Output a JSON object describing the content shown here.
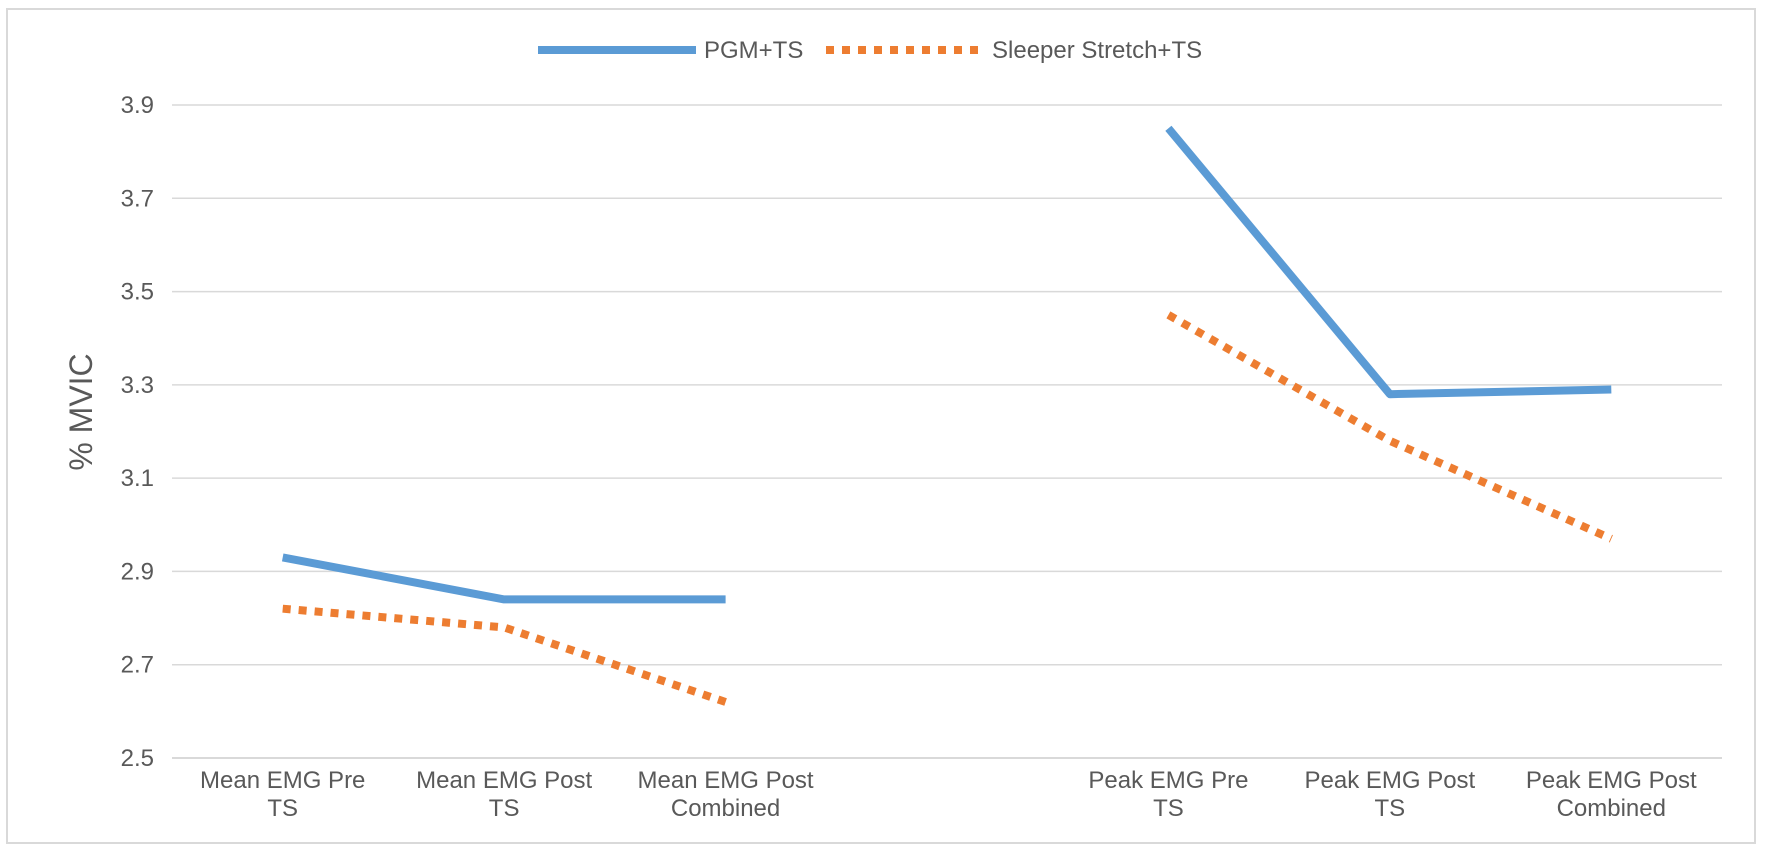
{
  "chart_data": {
    "type": "line",
    "title": "",
    "xlabel": "",
    "ylabel": "% MVIC",
    "ylim": [
      2.5,
      3.9
    ],
    "yticks": [
      2.5,
      2.7,
      2.9,
      3.1,
      3.3,
      3.5,
      3.7,
      3.9
    ],
    "ytick_labels": [
      "2.5",
      "2.7",
      "2.9",
      "3.1",
      "3.3",
      "3.5",
      "3.7",
      "3.9"
    ],
    "grid": "horizontal",
    "legend_position": "top-center",
    "categories": [
      [
        "Mean EMG Pre",
        "TS"
      ],
      [
        "Mean EMG Post",
        "TS"
      ],
      [
        "Mean EMG Post",
        "Combined"
      ],
      [
        "",
        ""
      ],
      [
        "Peak EMG Pre",
        "TS"
      ],
      [
        "Peak EMG Post",
        "TS"
      ],
      [
        "Peak EMG Post",
        "Combined"
      ]
    ],
    "series": [
      {
        "name": "PGM+TS",
        "color": "#5b9bd5",
        "style": "solid",
        "values": [
          2.93,
          2.84,
          2.84,
          null,
          3.85,
          3.28,
          3.29
        ]
      },
      {
        "name": "Sleeper Stretch+TS",
        "color": "#ed7d31",
        "style": "dotted",
        "values": [
          2.82,
          2.78,
          2.62,
          null,
          3.45,
          3.18,
          2.97
        ]
      }
    ]
  }
}
